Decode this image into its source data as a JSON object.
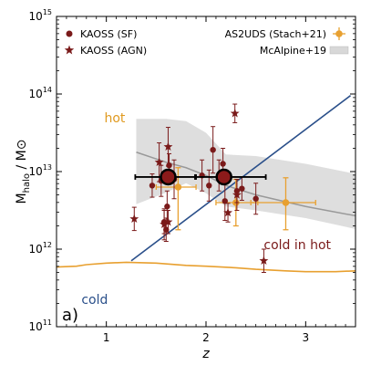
{
  "chart_data": {
    "type": "scatter",
    "panel_label": "a)",
    "xlabel": "z",
    "ylabel": "M_halo / M_⊙",
    "ylabel_parts": {
      "main": "M",
      "sub": "halo",
      "rest": " / M",
      "sun": "⊙"
    },
    "xlim": [
      0.5,
      3.5
    ],
    "ylim_log10": [
      11,
      15
    ],
    "y_scale": "log",
    "grid": false,
    "x_ticks": [
      1,
      2,
      3
    ],
    "x_tick_labels": [
      "1",
      "2",
      "3"
    ],
    "y_ticks": [
      {
        "exp": 11,
        "label_base": "10",
        "label_exp": "11"
      },
      {
        "exp": 12,
        "label_base": "10",
        "label_exp": "12"
      },
      {
        "exp": 13,
        "label_base": "10",
        "label_exp": "13"
      },
      {
        "exp": 14,
        "label_base": "10",
        "label_exp": "14"
      },
      {
        "exp": 15,
        "label_base": "10",
        "label_exp": "15"
      }
    ],
    "colors": {
      "kaoss": "#7a1a1a",
      "as2uds": "#e8a030",
      "hot_cold_line": "#e8a030",
      "mcalpine_band": "#d8d8d8",
      "mcalpine_line": "#999999",
      "diagonal": "#2a4f8a",
      "hot_text": "#e09a20",
      "cold_text": "#2a4f8a",
      "cold_in_hot_text": "#7a1a1a"
    },
    "annotations": {
      "hot": "hot",
      "cold": "cold",
      "cold_in_hot": "cold in hot"
    },
    "legend": {
      "placement_left": "top-left",
      "placement_right": "top-right",
      "entries": [
        {
          "label": "KAOSS (SF)",
          "marker": "circle"
        },
        {
          "label": "KAOSS (AGN)",
          "marker": "star"
        },
        {
          "label": "AS2UDS (Stach+21)",
          "marker": "errorbar"
        },
        {
          "label": "McAlpine+19",
          "marker": "band"
        }
      ]
    },
    "series": [
      {
        "name": "KAOSS (SF)",
        "marker": "circle",
        "points": [
          {
            "z": 1.46,
            "logM": 12.82,
            "err_lo": 0.15,
            "err_hi": 0.15
          },
          {
            "z": 1.55,
            "logM": 12.88,
            "err_lo": 0.2,
            "err_hi": 0.2
          },
          {
            "z": 1.58,
            "logM": 12.35,
            "err_lo": 0.15,
            "err_hi": 0.15
          },
          {
            "z": 1.6,
            "logM": 12.25,
            "err_lo": 0.15,
            "err_hi": 0.15
          },
          {
            "z": 1.61,
            "logM": 12.55,
            "err_lo": 0.2,
            "err_hi": 0.2
          },
          {
            "z": 1.63,
            "logM": 13.08,
            "err_lo": 0.15,
            "err_hi": 0.15
          },
          {
            "z": 1.68,
            "logM": 12.9,
            "err_lo": 0.25,
            "err_hi": 0.25
          },
          {
            "z": 1.96,
            "logM": 12.95,
            "err_lo": 0.2,
            "err_hi": 0.2
          },
          {
            "z": 2.03,
            "logM": 12.82,
            "err_lo": 0.2,
            "err_hi": 0.2
          },
          {
            "z": 2.07,
            "logM": 13.28,
            "err_lo": 0.3,
            "err_hi": 0.3
          },
          {
            "z": 2.13,
            "logM": 12.95,
            "err_lo": 0.2,
            "err_hi": 0.2
          },
          {
            "z": 2.17,
            "logM": 13.1,
            "err_lo": 0.2,
            "err_hi": 0.2
          },
          {
            "z": 2.19,
            "logM": 12.62,
            "err_lo": 0.25,
            "err_hi": 0.25
          },
          {
            "z": 2.31,
            "logM": 12.75,
            "err_lo": 0.15,
            "err_hi": 0.15
          },
          {
            "z": 2.36,
            "logM": 12.78,
            "err_lo": 0.15,
            "err_hi": 0.15
          },
          {
            "z": 2.5,
            "logM": 12.65,
            "err_lo": 0.2,
            "err_hi": 0.2
          }
        ]
      },
      {
        "name": "KAOSS (AGN)",
        "marker": "star",
        "points": [
          {
            "z": 1.28,
            "logM": 12.39,
            "err_lo": 0.15,
            "err_hi": 0.15
          },
          {
            "z": 1.53,
            "logM": 13.12,
            "err_lo": 0.25,
            "err_hi": 0.25
          },
          {
            "z": 1.58,
            "logM": 12.32,
            "err_lo": 0.2,
            "err_hi": 0.2
          },
          {
            "z": 1.62,
            "logM": 13.32,
            "err_lo": 0.25,
            "err_hi": 0.25
          },
          {
            "z": 1.62,
            "logM": 12.35,
            "err_lo": 0.15,
            "err_hi": 0.15
          },
          {
            "z": 2.22,
            "logM": 12.47,
            "err_lo": 0.12,
            "err_hi": 0.12
          },
          {
            "z": 2.29,
            "logM": 13.75,
            "err_lo": 0.12,
            "err_hi": 0.12
          },
          {
            "z": 2.31,
            "logM": 12.7,
            "err_lo": 0.2,
            "err_hi": 0.2
          },
          {
            "z": 2.58,
            "logM": 11.85,
            "err_lo": 0.15,
            "err_hi": 0.15
          }
        ]
      },
      {
        "name": "KAOSS (SF) average",
        "marker": "big-circle",
        "points": [
          {
            "z": 1.62,
            "logM": 12.93,
            "xerr_lo": 0.33,
            "xerr_hi": 0.27,
            "err_lo": 0.1,
            "err_hi": 0.1
          },
          {
            "z": 2.18,
            "logM": 12.93,
            "xerr_lo": 0.28,
            "xerr_hi": 0.42,
            "err_lo": 0.1,
            "err_hi": 0.1
          }
        ]
      },
      {
        "name": "AS2UDS (Stach+21)",
        "marker": "errorbar",
        "points": [
          {
            "z": 1.72,
            "logM": 12.8,
            "xerr_lo": 0.22,
            "xerr_hi": 0.18,
            "err_lo": 0.55,
            "err_hi": 0.25
          },
          {
            "z": 2.3,
            "logM": 12.6,
            "xerr_lo": 0.2,
            "xerr_hi": 0.22,
            "err_lo": 0.3,
            "err_hi": 0.3
          },
          {
            "z": 2.8,
            "logM": 12.6,
            "xerr_lo": 0.35,
            "xerr_hi": 0.3,
            "err_lo": 0.35,
            "err_hi": 0.32
          }
        ]
      }
    ],
    "mcalpine_band": {
      "z": [
        1.3,
        1.6,
        1.8,
        2.0,
        2.2,
        2.5,
        3.0,
        3.5
      ],
      "upper_logM": [
        13.68,
        13.68,
        13.65,
        13.5,
        13.22,
        13.2,
        13.1,
        12.97
      ],
      "lower_logM": [
        12.58,
        12.73,
        12.85,
        12.72,
        12.55,
        12.5,
        12.4,
        12.26
      ],
      "median_logM": [
        13.25,
        13.12,
        13.05,
        12.95,
        12.82,
        12.7,
        12.55,
        12.43
      ]
    },
    "hot_cold_boundary": {
      "z": [
        0.5,
        0.7,
        0.8,
        1.0,
        1.2,
        1.5,
        1.8,
        2.0,
        2.3,
        2.5,
        2.8,
        3.0,
        3.3,
        3.5
      ],
      "logM": [
        11.77,
        11.78,
        11.8,
        11.82,
        11.83,
        11.82,
        11.79,
        11.78,
        11.76,
        11.74,
        11.72,
        11.71,
        11.71,
        11.72
      ]
    },
    "diagonal_line": {
      "z": [
        1.25,
        3.45
      ],
      "logM": [
        11.85,
        13.98
      ]
    }
  }
}
